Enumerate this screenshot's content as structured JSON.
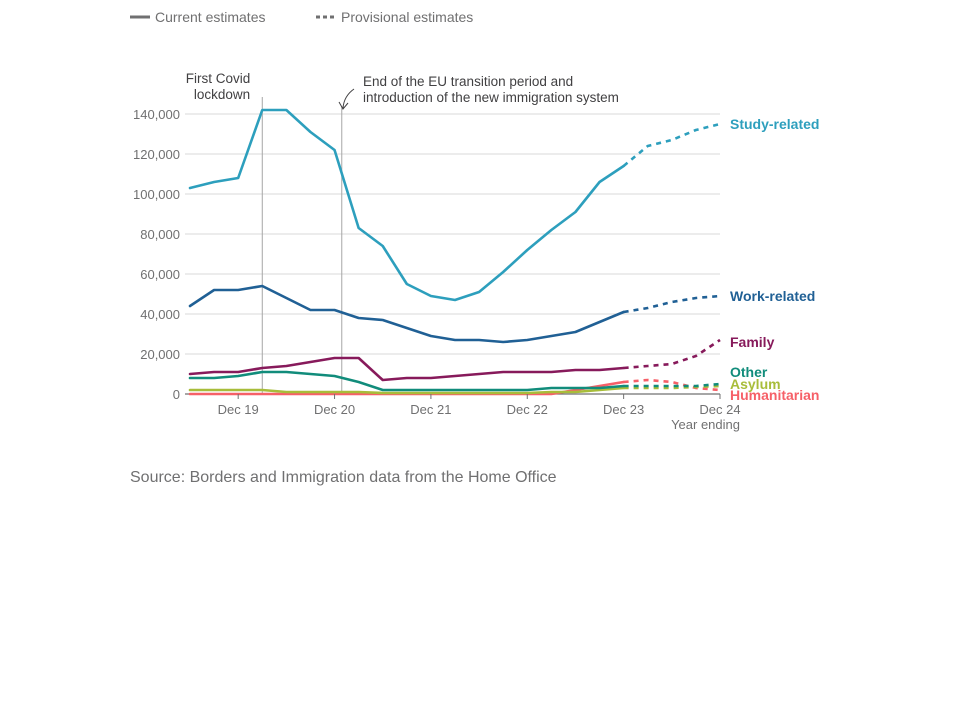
{
  "legend": {
    "current": "Current estimates",
    "provisional": "Provisional estimates"
  },
  "annotations": {
    "lockdown": [
      "First Covid",
      "lockdown"
    ],
    "eu_transition": [
      "End of the EU transition period and",
      "introduction of the new immigration system"
    ]
  },
  "source": "Source: Borders and Immigration data from the Home Office",
  "colors": {
    "study": "#2d9fbd",
    "work": "#206095",
    "family": "#871a5b",
    "other": "#118c7b",
    "asylum": "#a8bd3a",
    "humanitarian": "#f66068",
    "grid": "#d9d9d9",
    "axis_text": "#707071"
  },
  "chart_data": {
    "type": "line",
    "xlabel": "Year ending",
    "ylabel": "",
    "ylim": [
      0,
      140000
    ],
    "yticks": [
      0,
      20000,
      40000,
      60000,
      80000,
      100000,
      120000,
      140000
    ],
    "ytick_labels": [
      "0",
      "20,000",
      "40,000",
      "60,000",
      "80,000",
      "100,000",
      "120,000",
      "140,000"
    ],
    "x": [
      "Jun 2019",
      "Sep 2019",
      "Dec 2019",
      "Mar 2020",
      "Jun 2020",
      "Sep 2020",
      "Dec 2020",
      "Mar 2021",
      "Jun 2021",
      "Sep 2021",
      "Dec 2021",
      "Mar 2022",
      "Jun 2022",
      "Sep 2022",
      "Dec 2022",
      "Mar 2023",
      "Jun 2023",
      "Sep 2023",
      "Dec 2023",
      "Mar 2024",
      "Jun 2024",
      "Sep 2024",
      "Dec 2024"
    ],
    "xtick_labels": [
      "Dec 19",
      "Dec 20",
      "Dec 21",
      "Dec 22",
      "Dec 23",
      "Dec 24"
    ],
    "xtick_index": [
      2,
      6,
      10,
      14,
      18,
      22
    ],
    "provisional_from_index": 18,
    "events": [
      {
        "key": "lockdown",
        "x_index": 3
      },
      {
        "key": "eu_transition",
        "x_index": 6.3
      }
    ],
    "series": [
      {
        "key": "study",
        "name": "Study-related",
        "color": "#2d9fbd",
        "values": [
          103000,
          106000,
          108000,
          142000,
          142000,
          131000,
          122000,
          83000,
          74000,
          55000,
          49000,
          47000,
          51000,
          61000,
          72000,
          82000,
          91000,
          106000,
          114000,
          124000,
          127000,
          132000,
          135000
        ]
      },
      {
        "key": "work",
        "name": "Work-related",
        "color": "#206095",
        "values": [
          44000,
          52000,
          52000,
          54000,
          48000,
          42000,
          42000,
          38000,
          37000,
          33000,
          29000,
          27000,
          27000,
          26000,
          27000,
          29000,
          31000,
          36000,
          41000,
          43000,
          46000,
          48000,
          49000
        ]
      },
      {
        "key": "family",
        "name": "Family",
        "color": "#871a5b",
        "values": [
          10000,
          11000,
          11000,
          13000,
          14000,
          16000,
          18000,
          18000,
          7000,
          8000,
          8000,
          9000,
          10000,
          11000,
          11000,
          11000,
          12000,
          12000,
          13000,
          14000,
          15000,
          19000,
          27000
        ]
      },
      {
        "key": "other",
        "name": "Other",
        "color": "#118c7b",
        "values": [
          8000,
          8000,
          9000,
          11000,
          11000,
          10000,
          9000,
          6000,
          2000,
          2000,
          2000,
          2000,
          2000,
          2000,
          2000,
          3000,
          3000,
          3000,
          4000,
          4000,
          4000,
          4000,
          5000
        ]
      },
      {
        "key": "asylum",
        "name": "Asylum",
        "color": "#a8bd3a",
        "values": [
          2000,
          2000,
          2000,
          2000,
          1000,
          1000,
          1000,
          1000,
          500,
          500,
          500,
          500,
          500,
          500,
          500,
          1000,
          1000,
          2000,
          3000,
          3000,
          3000,
          3500,
          4000
        ]
      },
      {
        "key": "humanitarian",
        "name": "Humanitarian",
        "color": "#f66068",
        "values": [
          0,
          0,
          0,
          0,
          0,
          0,
          0,
          0,
          0,
          0,
          0,
          0,
          0,
          0,
          0,
          0,
          2000,
          4000,
          6000,
          7000,
          6000,
          3000,
          2000
        ]
      }
    ]
  }
}
